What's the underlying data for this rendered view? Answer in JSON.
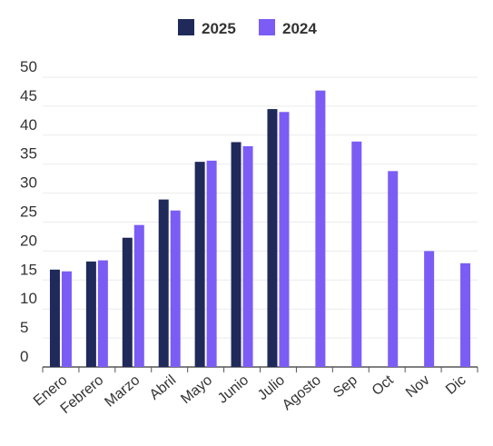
{
  "chart_data": {
    "type": "bar",
    "categories": [
      "Enero",
      "Febrero",
      "Marzo",
      "Abril",
      "Mayo",
      "Junio",
      "Julio",
      "Agosto",
      "Sep",
      "Oct",
      "Nov",
      "Dic"
    ],
    "series": [
      {
        "name": "2025",
        "color": "#1f2a5a",
        "values": [
          16.8,
          18.2,
          22.3,
          28.9,
          35.4,
          38.8,
          44.5,
          null,
          null,
          null,
          null,
          null
        ]
      },
      {
        "name": "2024",
        "color": "#7b5cf5",
        "values": [
          16.5,
          18.4,
          24.5,
          27.0,
          35.6,
          38.1,
          44.0,
          47.7,
          38.9,
          33.8,
          20.0,
          17.9
        ]
      }
    ],
    "ylim": [
      0,
      50
    ],
    "yticks": [
      0,
      5,
      10,
      15,
      20,
      25,
      30,
      35,
      40,
      45,
      50
    ],
    "grid": true,
    "legend_position": "top-center",
    "title": "",
    "xlabel": "",
    "ylabel": ""
  }
}
